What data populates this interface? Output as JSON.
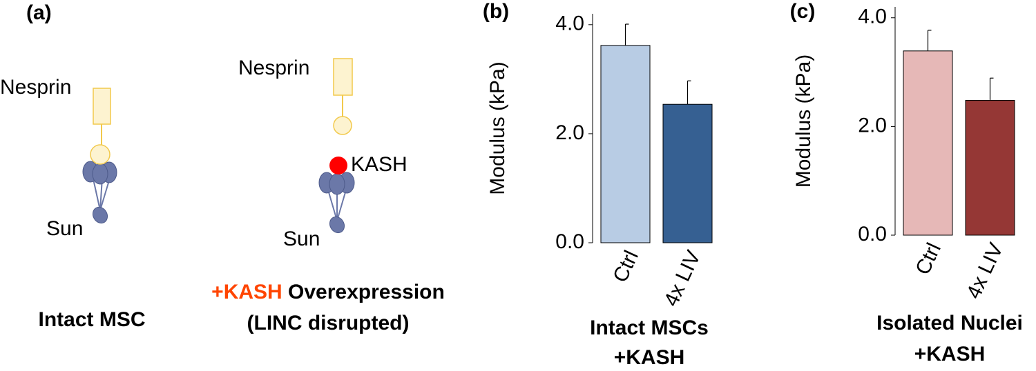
{
  "diagram": {
    "panel_label": "(a)",
    "intact": {
      "nesprin": "Nesprin",
      "sun": "Sun",
      "caption": "Intact MSC"
    },
    "disrupted": {
      "nesprin": "Nesprin",
      "kash": "KASH",
      "sun": "Sun",
      "caption_highlight": "+KASH",
      "caption_rest": " Overexpression",
      "caption_line2": "(LINC disrupted)"
    }
  },
  "chart_data": [
    {
      "type": "bar",
      "panel_label": "(b)",
      "ylabel": "Modulus (kPa)",
      "xlabel": [
        "Intact MSCs",
        "+KASH"
      ],
      "categories": [
        "Ctrl",
        "4x LIV"
      ],
      "values": [
        3.62,
        2.54
      ],
      "errors": [
        0.39,
        0.43
      ],
      "colors": [
        "#b8cce4",
        "#366092"
      ],
      "ylim": [
        0,
        4.2
      ],
      "yticks": [
        {
          "value": 0,
          "label": "0.0"
        },
        {
          "value": 2,
          "label": "2.0"
        },
        {
          "value": 4,
          "label": "4.0"
        }
      ]
    },
    {
      "type": "bar",
      "panel_label": "(c)",
      "ylabel": "Modulus (kPa)",
      "xlabel": [
        "Isolated Nuclei",
        "+KASH"
      ],
      "categories": [
        "Ctrl",
        "4x LIV"
      ],
      "values": [
        3.39,
        2.48
      ],
      "errors": [
        0.38,
        0.41
      ],
      "colors": [
        "#e6b8b7",
        "#953735"
      ],
      "ylim": [
        0,
        4.2
      ],
      "yticks": [
        {
          "value": 0,
          "label": "0.0"
        },
        {
          "value": 2,
          "label": "2.0"
        },
        {
          "value": 4,
          "label": "4.0"
        }
      ]
    }
  ]
}
